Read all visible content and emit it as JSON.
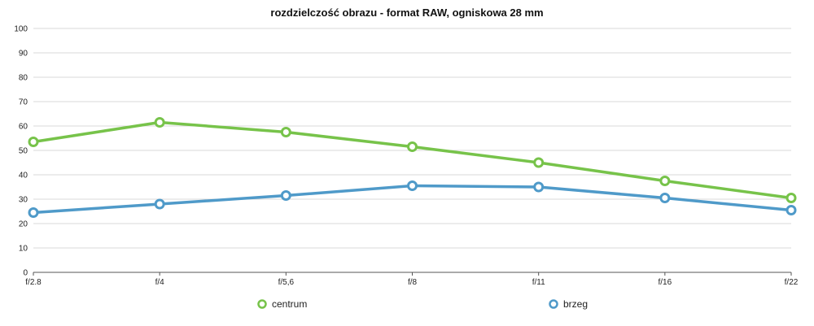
{
  "chart_data": {
    "type": "line",
    "title": "rozdzielczość obrazu - format RAW, ogniskowa 28 mm",
    "categories": [
      "f/2.8",
      "f/4",
      "f/5,6",
      "f/8",
      "f/11",
      "f/16",
      "f/22"
    ],
    "series": [
      {
        "name": "centrum",
        "color": "#77c34a",
        "values": [
          53.5,
          61.5,
          57.5,
          51.5,
          45,
          37.5,
          30.5
        ]
      },
      {
        "name": "brzeg",
        "color": "#4f9ac9",
        "values": [
          24.5,
          28,
          31.5,
          35.5,
          35,
          30.5,
          25.5
        ]
      }
    ],
    "ylim": [
      0,
      100
    ],
    "yticks": [
      0,
      10,
      20,
      30,
      40,
      50,
      60,
      70,
      80,
      90,
      100
    ],
    "grid": true,
    "legend_position": "bottom"
  }
}
